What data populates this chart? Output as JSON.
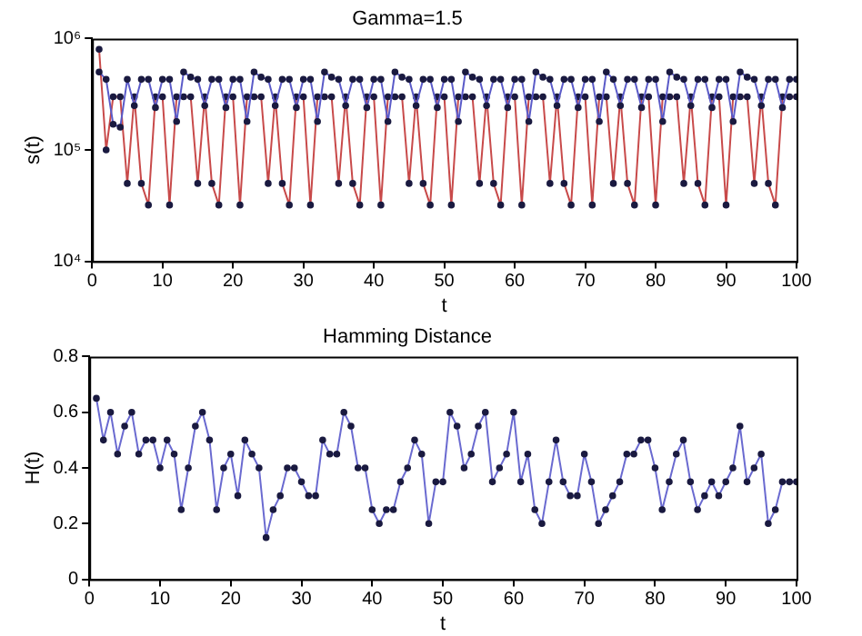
{
  "chart_data": [
    {
      "type": "line",
      "title": "Gamma=1.5",
      "xlabel": "t",
      "ylabel": "s(t)",
      "log": "y",
      "grid": false,
      "legend": false,
      "marker": "circle",
      "line_style": "solid",
      "x": [
        1,
        2,
        3,
        4,
        5,
        6,
        7,
        8,
        9,
        10,
        11,
        12,
        13,
        14,
        15,
        16,
        17,
        18,
        19,
        20,
        21,
        22,
        23,
        24,
        25,
        26,
        27,
        28,
        29,
        30,
        31,
        32,
        33,
        34,
        35,
        36,
        37,
        38,
        39,
        40,
        41,
        42,
        43,
        44,
        45,
        46,
        47,
        48,
        49,
        50,
        51,
        52,
        53,
        54,
        55,
        56,
        57,
        58,
        59,
        60,
        61,
        62,
        63,
        64,
        65,
        66,
        67,
        68,
        69,
        70,
        71,
        72,
        73,
        74,
        75,
        76,
        77,
        78,
        79,
        80,
        81,
        82,
        83,
        84,
        85,
        86,
        87,
        88,
        89,
        90,
        91,
        92,
        93,
        94,
        95,
        96,
        97,
        98,
        99,
        100
      ],
      "xlim": [
        0,
        100
      ],
      "xticks": [
        0,
        10,
        20,
        30,
        40,
        50,
        60,
        70,
        80,
        90,
        100
      ],
      "ylim": [
        10000,
        1000000
      ],
      "yticks": [
        {
          "value": 10000,
          "label": "10⁴"
        },
        {
          "value": 100000,
          "label": "10⁵"
        },
        {
          "value": 1000000,
          "label": "10⁶"
        }
      ],
      "series": [
        {
          "color": "#5a5ac8",
          "values": [
            500000,
            430000,
            170000,
            160000,
            430000,
            250000,
            430000,
            430000,
            240000,
            430000,
            430000,
            180000,
            500000,
            450000,
            430000,
            250000,
            430000,
            430000,
            240000,
            430000,
            430000,
            180000,
            500000,
            450000,
            430000,
            250000,
            430000,
            430000,
            240000,
            430000,
            430000,
            180000,
            500000,
            450000,
            430000,
            250000,
            430000,
            430000,
            240000,
            430000,
            430000,
            180000,
            500000,
            450000,
            430000,
            250000,
            430000,
            430000,
            240000,
            430000,
            430000,
            180000,
            500000,
            450000,
            430000,
            250000,
            430000,
            430000,
            240000,
            430000,
            430000,
            180000,
            500000,
            450000,
            430000,
            250000,
            430000,
            430000,
            240000,
            430000,
            430000,
            180000,
            500000,
            430000,
            250000,
            430000,
            430000,
            240000,
            430000,
            430000,
            180000,
            500000,
            450000,
            430000,
            250000,
            430000,
            430000,
            240000,
            430000,
            430000,
            180000,
            500000,
            450000,
            430000,
            250000,
            430000,
            430000,
            240000,
            430000,
            430000
          ]
        },
        {
          "color": "#c84a4a",
          "values": [
            800000,
            100000,
            300000,
            300000,
            50000,
            300000,
            50000,
            32000,
            300000,
            300000,
            32000,
            300000,
            300000,
            300000,
            50000,
            300000,
            50000,
            32000,
            300000,
            300000,
            32000,
            300000,
            300000,
            300000,
            50000,
            300000,
            50000,
            32000,
            300000,
            300000,
            32000,
            300000,
            300000,
            300000,
            50000,
            300000,
            50000,
            32000,
            300000,
            300000,
            32000,
            300000,
            300000,
            300000,
            50000,
            300000,
            50000,
            32000,
            300000,
            300000,
            32000,
            300000,
            300000,
            300000,
            50000,
            300000,
            50000,
            32000,
            300000,
            300000,
            32000,
            300000,
            300000,
            300000,
            50000,
            300000,
            50000,
            32000,
            300000,
            300000,
            32000,
            300000,
            300000,
            50000,
            300000,
            50000,
            32000,
            300000,
            300000,
            32000,
            300000,
            300000,
            300000,
            50000,
            300000,
            50000,
            32000,
            300000,
            300000,
            32000,
            300000,
            300000,
            300000,
            50000,
            300000,
            50000,
            32000,
            300000,
            300000,
            300000
          ]
        }
      ]
    },
    {
      "type": "line",
      "title": "Hamming Distance",
      "xlabel": "t",
      "ylabel": "H(t)",
      "grid": false,
      "legend": false,
      "marker": "circle",
      "line_style": "solid",
      "x": [
        1,
        2,
        3,
        4,
        5,
        6,
        7,
        8,
        9,
        10,
        11,
        12,
        13,
        14,
        15,
        16,
        17,
        18,
        19,
        20,
        21,
        22,
        23,
        24,
        25,
        26,
        27,
        28,
        29,
        30,
        31,
        32,
        33,
        34,
        35,
        36,
        37,
        38,
        39,
        40,
        41,
        42,
        43,
        44,
        45,
        46,
        47,
        48,
        49,
        50,
        51,
        52,
        53,
        54,
        55,
        56,
        57,
        58,
        59,
        60,
        61,
        62,
        63,
        64,
        65,
        66,
        67,
        68,
        69,
        70,
        71,
        72,
        73,
        74,
        75,
        76,
        77,
        78,
        79,
        80,
        81,
        82,
        83,
        84,
        85,
        86,
        87,
        88,
        89,
        90,
        91,
        92,
        93,
        94,
        95,
        96,
        97,
        98,
        99,
        100
      ],
      "xlim": [
        0,
        100
      ],
      "xticks": [
        0,
        10,
        20,
        30,
        40,
        50,
        60,
        70,
        80,
        90,
        100
      ],
      "ylim": [
        0,
        0.8
      ],
      "yticks": [
        0,
        0.2,
        0.4,
        0.6,
        0.8
      ],
      "series": [
        {
          "color": "#6a6ad0",
          "values": [
            0.65,
            0.5,
            0.6,
            0.45,
            0.55,
            0.6,
            0.45,
            0.5,
            0.5,
            0.4,
            0.5,
            0.45,
            0.25,
            0.4,
            0.55,
            0.6,
            0.5,
            0.25,
            0.4,
            0.45,
            0.3,
            0.5,
            0.45,
            0.4,
            0.15,
            0.25,
            0.3,
            0.4,
            0.4,
            0.35,
            0.3,
            0.3,
            0.5,
            0.45,
            0.45,
            0.6,
            0.55,
            0.4,
            0.4,
            0.25,
            0.2,
            0.25,
            0.25,
            0.35,
            0.4,
            0.5,
            0.45,
            0.2,
            0.35,
            0.35,
            0.6,
            0.55,
            0.4,
            0.45,
            0.55,
            0.6,
            0.35,
            0.4,
            0.45,
            0.6,
            0.35,
            0.45,
            0.25,
            0.2,
            0.35,
            0.5,
            0.35,
            0.3,
            0.3,
            0.45,
            0.35,
            0.2,
            0.25,
            0.3,
            0.35,
            0.45,
            0.45,
            0.5,
            0.5,
            0.4,
            0.25,
            0.35,
            0.45,
            0.5,
            0.35,
            0.25,
            0.3,
            0.35,
            0.3,
            0.35,
            0.4,
            0.55,
            0.35,
            0.4,
            0.45,
            0.2,
            0.25,
            0.35,
            0.35,
            0.35
          ]
        }
      ]
    }
  ]
}
